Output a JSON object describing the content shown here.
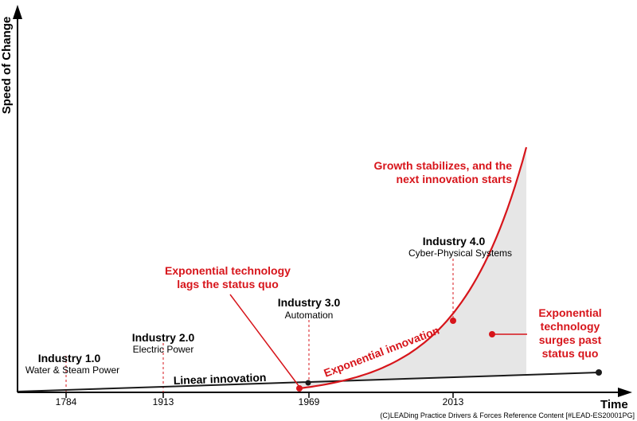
{
  "chart_data": {
    "type": "line",
    "title": "",
    "xlabel": "Time",
    "ylabel": "Speed of Change",
    "x_ticks": [
      "1784",
      "1913",
      "1969",
      "2013"
    ],
    "series": [
      {
        "name": "Linear innovation",
        "color": "#1a1a1a"
      },
      {
        "name": "Exponential innovation",
        "color": "#d7151b"
      }
    ],
    "eras": [
      {
        "name": "Industry 1.0",
        "subtitle": "Water & Steam Power",
        "year": "1784"
      },
      {
        "name": "Industry 2.0",
        "subtitle": "Electric Power",
        "year": "1913"
      },
      {
        "name": "Industry 3.0",
        "subtitle": "Automation",
        "year": "1969"
      },
      {
        "name": "Industry 4.0",
        "subtitle": "Cyber-Physical Systems",
        "year": "2013"
      }
    ],
    "annotations": {
      "lags": [
        "Exponential technology",
        "lags the status quo"
      ],
      "stabilizes": [
        "Growth stabilizes, and the",
        "next innovation starts"
      ],
      "surges": [
        "Exponential",
        "technology",
        "surges past",
        "status quo"
      ]
    },
    "credit": "(C)LEADing Practice Drivers & Forces Reference Content [#LEAD-ES20001PG]",
    "grid": false,
    "colors": {
      "red": "#d7151b",
      "shade": "#e6e6e6"
    }
  }
}
